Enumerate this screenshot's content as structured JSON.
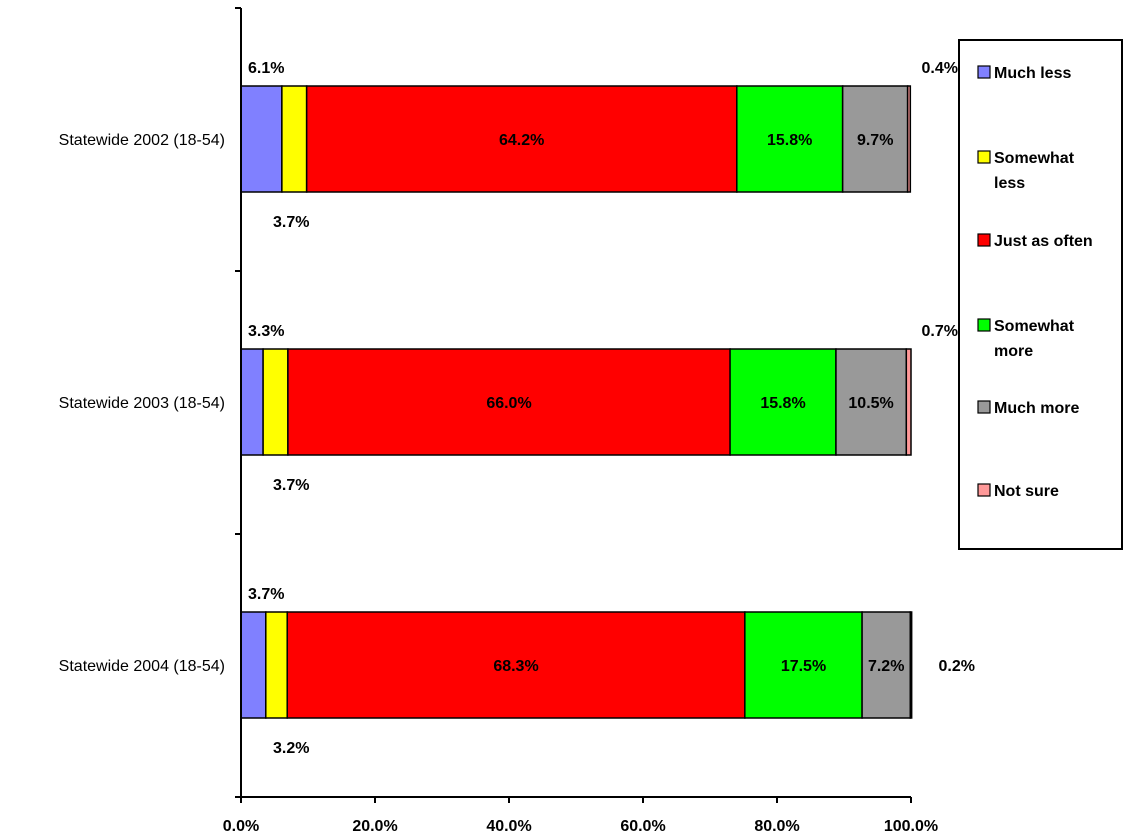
{
  "chart_data": {
    "type": "bar",
    "orientation": "horizontal",
    "stacked": true,
    "categories": [
      "Statewide 2002 (18-54)",
      "Statewide 2003 (18-54)",
      "Statewide 2004 (18-54)"
    ],
    "series": [
      {
        "name": "Much less",
        "color": "#8080ff",
        "values": [
          6.1,
          3.3,
          3.7
        ],
        "labels": [
          "6.1%",
          "3.3%",
          "3.7%"
        ]
      },
      {
        "name": "Somewhat less",
        "color": "#ffff00",
        "values": [
          3.7,
          3.7,
          3.2
        ],
        "labels": [
          "3.7%",
          "3.7%",
          "3.2%"
        ]
      },
      {
        "name": "Just as often",
        "color": "#ff0000",
        "values": [
          64.2,
          66.0,
          68.3
        ],
        "labels": [
          "64.2%",
          "66.0%",
          "68.3%"
        ]
      },
      {
        "name": "Somewhat more",
        "color": "#00ff00",
        "values": [
          15.8,
          15.8,
          17.5
        ],
        "labels": [
          "15.8%",
          "15.8%",
          "17.5%"
        ]
      },
      {
        "name": "Much more",
        "color": "#999999",
        "values": [
          9.7,
          10.5,
          7.2
        ],
        "labels": [
          "9.7%",
          "10.5%",
          "7.2%"
        ]
      },
      {
        "name": "Not sure",
        "color": "#ff9999",
        "values": [
          0.4,
          0.7,
          0.2
        ],
        "labels": [
          "0.4%",
          "0.7%",
          "0.2%"
        ]
      }
    ],
    "legend_lines": [
      [
        "Much less"
      ],
      [
        "Somewhat",
        "less"
      ],
      [
        "Just as often"
      ],
      [
        "Somewhat",
        "more"
      ],
      [
        "Much more"
      ],
      [
        "Not sure"
      ]
    ],
    "xlim": [
      0,
      100
    ],
    "xticks": [
      0,
      20,
      40,
      60,
      80,
      100
    ],
    "xtick_labels": [
      "0.0%",
      "20.0%",
      "40.0%",
      "60.0%",
      "80.0%",
      "100.0%"
    ],
    "legend_position": "right",
    "grid": false,
    "title": "",
    "xlabel": "",
    "ylabel": ""
  }
}
